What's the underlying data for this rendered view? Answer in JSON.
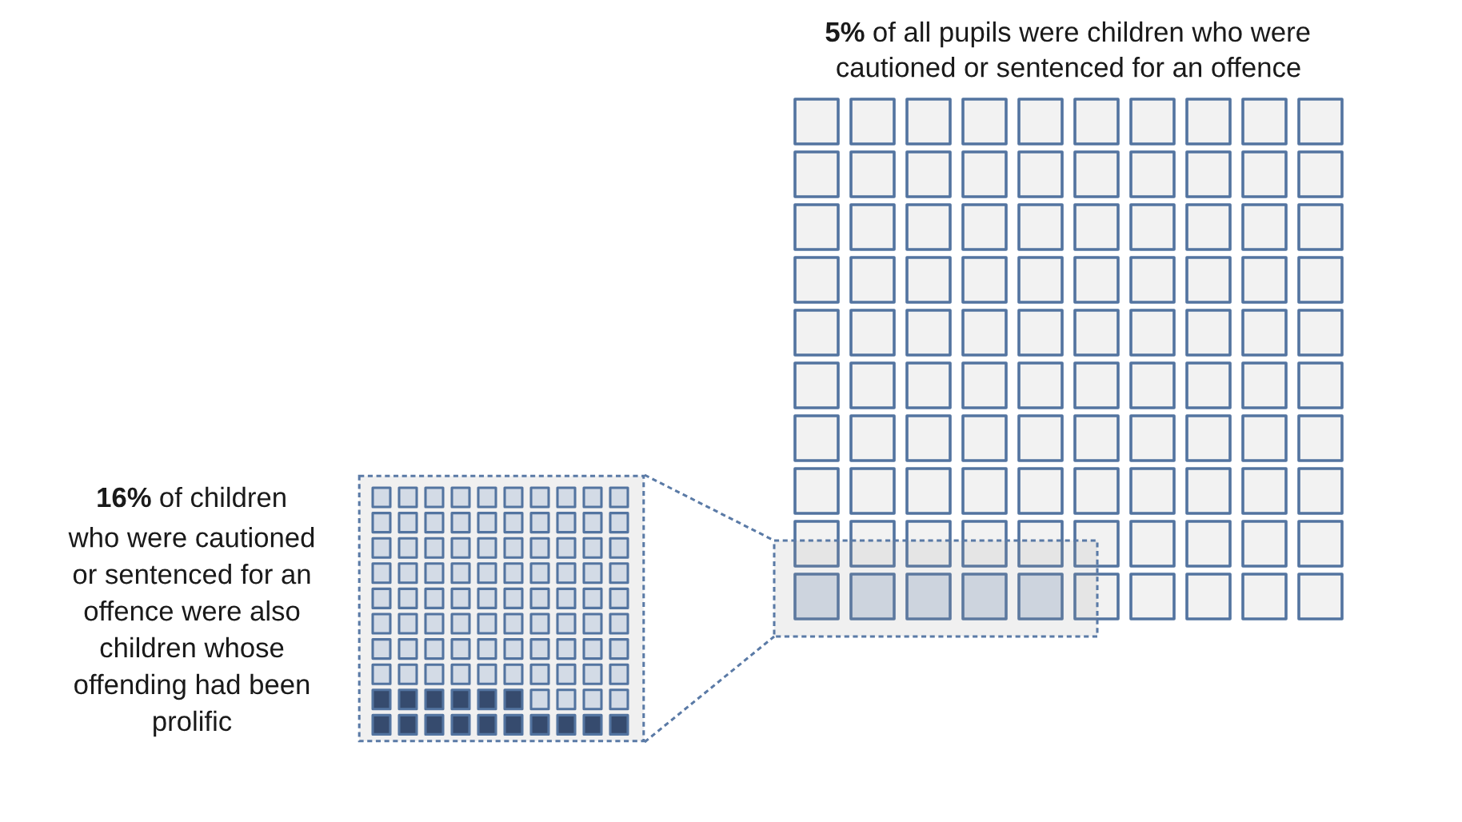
{
  "chart_data": [
    {
      "type": "other",
      "title": "of all pupils were children who were",
      "subtitle": "cautioned or sentenced for an offence",
      "values": [
        5
      ],
      "value_labels": [
        "5%"
      ],
      "colors": [
        "#d6deea"
      ]
    },
    {
      "type": "other",
      "title": "of children",
      "subtitle": "who were cautioned\nor sentenced for an\noffence were also\nchildren whose\noffending had been\nprolific",
      "values": [
        16
      ],
      "value_labels": [
        "16%"
      ],
      "colors": [
        "#364b6e"
      ]
    }
  ]
}
